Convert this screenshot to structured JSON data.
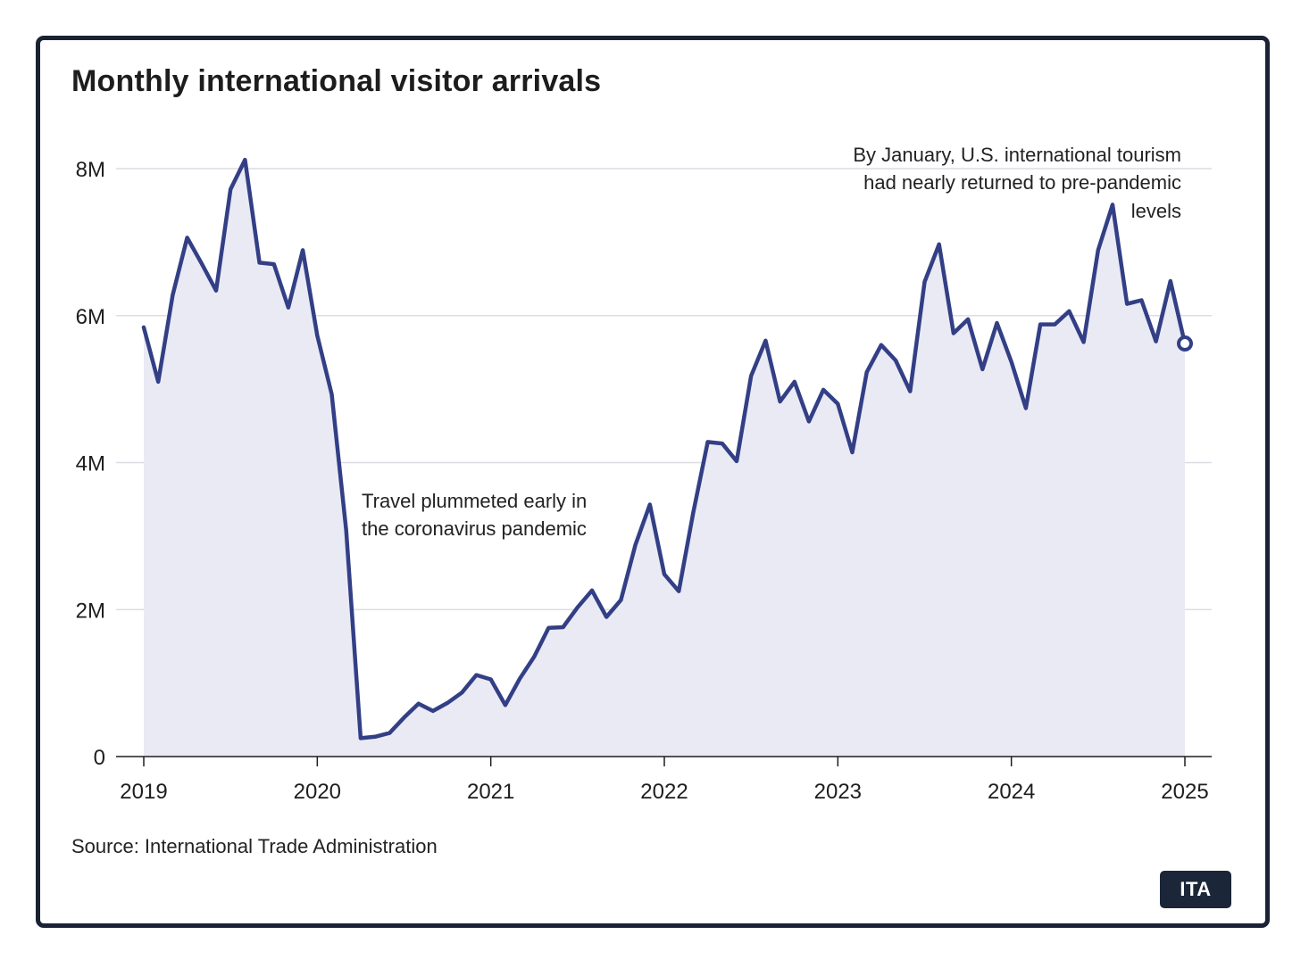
{
  "title": "Monthly international visitor arrivals",
  "source": "Source: International Trade Administration",
  "badge": "ITA",
  "colors": {
    "line": "#333f85",
    "area": "#eaeaf5",
    "grid": "#dcdce4",
    "text": "#1e1e1e"
  },
  "chart_data": {
    "type": "area",
    "title": "Monthly international visitor arrivals",
    "xlabel": "",
    "ylabel": "",
    "ylim": [
      0,
      8000000
    ],
    "xlim": [
      "2019-01",
      "2025-01"
    ],
    "y_ticks": [
      {
        "value": 0,
        "label": "0"
      },
      {
        "value": 2000000,
        "label": "2M"
      },
      {
        "value": 4000000,
        "label": "4M"
      },
      {
        "value": 6000000,
        "label": "6M"
      },
      {
        "value": 8000000,
        "label": "8M"
      }
    ],
    "x_ticks": [
      {
        "value": "2019-01",
        "label": "2019"
      },
      {
        "value": "2020-01",
        "label": "2020"
      },
      {
        "value": "2021-01",
        "label": "2021"
      },
      {
        "value": "2022-01",
        "label": "2022"
      },
      {
        "value": "2023-01",
        "label": "2023"
      },
      {
        "value": "2024-01",
        "label": "2024"
      },
      {
        "value": "2025-01",
        "label": "2025"
      }
    ],
    "grid": true,
    "x": [
      "2019-01",
      "2019-02",
      "2019-03",
      "2019-04",
      "2019-05",
      "2019-06",
      "2019-07",
      "2019-08",
      "2019-09",
      "2019-10",
      "2019-11",
      "2019-12",
      "2020-01",
      "2020-02",
      "2020-03",
      "2020-04",
      "2020-05",
      "2020-06",
      "2020-07",
      "2020-08",
      "2020-09",
      "2020-10",
      "2020-11",
      "2020-12",
      "2021-01",
      "2021-02",
      "2021-03",
      "2021-04",
      "2021-05",
      "2021-06",
      "2021-07",
      "2021-08",
      "2021-09",
      "2021-10",
      "2021-11",
      "2021-12",
      "2022-01",
      "2022-02",
      "2022-03",
      "2022-04",
      "2022-05",
      "2022-06",
      "2022-07",
      "2022-08",
      "2022-09",
      "2022-10",
      "2022-11",
      "2022-12",
      "2023-01",
      "2023-02",
      "2023-03",
      "2023-04",
      "2023-05",
      "2023-06",
      "2023-07",
      "2023-08",
      "2023-09",
      "2023-10",
      "2023-11",
      "2023-12",
      "2024-01",
      "2024-02",
      "2024-03",
      "2024-04",
      "2024-05",
      "2024-06",
      "2024-07",
      "2024-08",
      "2024-09",
      "2024-10",
      "2024-11",
      "2024-12",
      "2025-01"
    ],
    "series": [
      {
        "values": [
          5840000,
          5100000,
          6280000,
          7060000,
          6710000,
          6340000,
          7720000,
          8120000,
          6720000,
          6700000,
          6110000,
          6890000,
          5730000,
          4930000,
          3080000,
          250000,
          270000,
          320000,
          530000,
          720000,
          620000,
          730000,
          870000,
          1110000,
          1050000,
          700000,
          1060000,
          1360000,
          1750000,
          1760000,
          2030000,
          2260000,
          1900000,
          2130000,
          2880000,
          3430000,
          2480000,
          2250000,
          3320000,
          4280000,
          4260000,
          4020000,
          5180000,
          5660000,
          4830000,
          5100000,
          4560000,
          4990000,
          4800000,
          4140000,
          5230000,
          5600000,
          5390000,
          4970000,
          6460000,
          6970000,
          5760000,
          5950000,
          5270000,
          5900000,
          5370000,
          4740000,
          5880000,
          5880000,
          6060000,
          5640000,
          6890000,
          7510000,
          6160000,
          6210000,
          5650000,
          6470000,
          5620000
        ]
      }
    ],
    "annotations": [
      {
        "lines": [
          "Travel plummeted early in",
          "the coronavirus pandemic"
        ],
        "at": "2020-04"
      },
      {
        "lines": [
          "By January, U.S. international tourism",
          "had nearly returned to pre-pandemic",
          "levels"
        ],
        "at": "2025-01"
      }
    ]
  }
}
